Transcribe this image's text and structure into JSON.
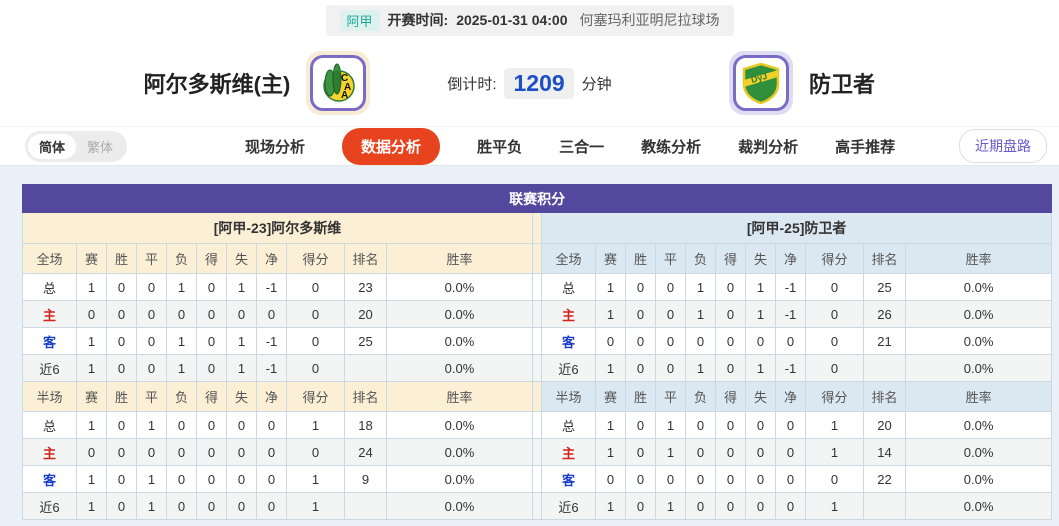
{
  "match_bar": {
    "league": "阿甲",
    "kickoff_label": "开赛时间:",
    "kickoff_time": "2025-01-31 04:00",
    "venue": "何塞玛利亚明尼拉球场"
  },
  "teams": {
    "home": {
      "name": "阿尔多斯维(主)",
      "logo_text": "CAA"
    },
    "away": {
      "name": "防卫者",
      "logo_text": "DyJ"
    }
  },
  "countdown": {
    "label": "倒计时:",
    "minutes": "1209",
    "unit": "分钟"
  },
  "nav": {
    "lang_toggle": {
      "simplified": "简体",
      "traditional": "繁体"
    },
    "items": [
      {
        "label": "现场分析",
        "active": false
      },
      {
        "label": "数据分析",
        "active": true
      },
      {
        "label": "胜平负",
        "active": false
      },
      {
        "label": "三合一",
        "active": false
      },
      {
        "label": "教练分析",
        "active": false
      },
      {
        "label": "裁判分析",
        "active": false
      },
      {
        "label": "高手推荐",
        "active": false
      }
    ],
    "recent_button": "近期盘路"
  },
  "league_table": {
    "title": "联赛积分",
    "full_label": "全场",
    "half_label": "半场",
    "columns": [
      "赛",
      "胜",
      "平",
      "负",
      "得",
      "失",
      "净",
      "得分",
      "排名",
      "胜率"
    ],
    "sections": [
      {
        "side": "home",
        "header": "[阿甲-23]阿尔多斯维",
        "full_rows": [
          {
            "label": "总",
            "type": "total",
            "values": [
              "1",
              "0",
              "0",
              "1",
              "0",
              "1",
              "-1",
              "0",
              "23",
              "0.0%"
            ]
          },
          {
            "label": "主",
            "type": "home",
            "values": [
              "0",
              "0",
              "0",
              "0",
              "0",
              "0",
              "0",
              "0",
              "20",
              "0.0%"
            ]
          },
          {
            "label": "客",
            "type": "away",
            "values": [
              "1",
              "0",
              "0",
              "1",
              "0",
              "1",
              "-1",
              "0",
              "25",
              "0.0%"
            ]
          },
          {
            "label": "近6",
            "type": "recent",
            "values": [
              "1",
              "0",
              "0",
              "1",
              "0",
              "1",
              "-1",
              "0",
              "",
              "0.0%"
            ]
          }
        ],
        "half_rows": [
          {
            "label": "总",
            "type": "total",
            "values": [
              "1",
              "0",
              "1",
              "0",
              "0",
              "0",
              "0",
              "1",
              "18",
              "0.0%"
            ]
          },
          {
            "label": "主",
            "type": "home",
            "values": [
              "0",
              "0",
              "0",
              "0",
              "0",
              "0",
              "0",
              "0",
              "24",
              "0.0%"
            ]
          },
          {
            "label": "客",
            "type": "away",
            "values": [
              "1",
              "0",
              "1",
              "0",
              "0",
              "0",
              "0",
              "1",
              "9",
              "0.0%"
            ]
          },
          {
            "label": "近6",
            "type": "recent",
            "values": [
              "1",
              "0",
              "1",
              "0",
              "0",
              "0",
              "0",
              "1",
              "",
              "0.0%"
            ]
          }
        ]
      },
      {
        "side": "away",
        "header": "[阿甲-25]防卫者",
        "full_rows": [
          {
            "label": "总",
            "type": "total",
            "values": [
              "1",
              "0",
              "0",
              "1",
              "0",
              "1",
              "-1",
              "0",
              "25",
              "0.0%"
            ]
          },
          {
            "label": "主",
            "type": "home",
            "values": [
              "1",
              "0",
              "0",
              "1",
              "0",
              "1",
              "-1",
              "0",
              "26",
              "0.0%"
            ]
          },
          {
            "label": "客",
            "type": "away",
            "values": [
              "0",
              "0",
              "0",
              "0",
              "0",
              "0",
              "0",
              "0",
              "21",
              "0.0%"
            ]
          },
          {
            "label": "近6",
            "type": "recent",
            "values": [
              "1",
              "0",
              "0",
              "1",
              "0",
              "1",
              "-1",
              "0",
              "",
              "0.0%"
            ]
          }
        ],
        "half_rows": [
          {
            "label": "总",
            "type": "total",
            "values": [
              "1",
              "0",
              "1",
              "0",
              "0",
              "0",
              "0",
              "1",
              "20",
              "0.0%"
            ]
          },
          {
            "label": "主",
            "type": "home",
            "values": [
              "1",
              "0",
              "1",
              "0",
              "0",
              "0",
              "0",
              "1",
              "14",
              "0.0%"
            ]
          },
          {
            "label": "客",
            "type": "away",
            "values": [
              "0",
              "0",
              "0",
              "0",
              "0",
              "0",
              "0",
              "0",
              "22",
              "0.0%"
            ]
          },
          {
            "label": "近6",
            "type": "recent",
            "values": [
              "1",
              "0",
              "1",
              "0",
              "0",
              "0",
              "0",
              "1",
              "",
              "0.0%"
            ]
          }
        ]
      }
    ]
  },
  "colors": {
    "accent_purple": "#54489e",
    "active_tab_orange": "#e8431f",
    "home_section_bg": "#fbefd6",
    "away_section_bg": "#dbe7f1",
    "home_label_red": "#d0241b",
    "away_label_blue": "#1a3ecc",
    "countdown_blue": "#1d4fc4",
    "league_badge_teal": "#1fa89b"
  }
}
